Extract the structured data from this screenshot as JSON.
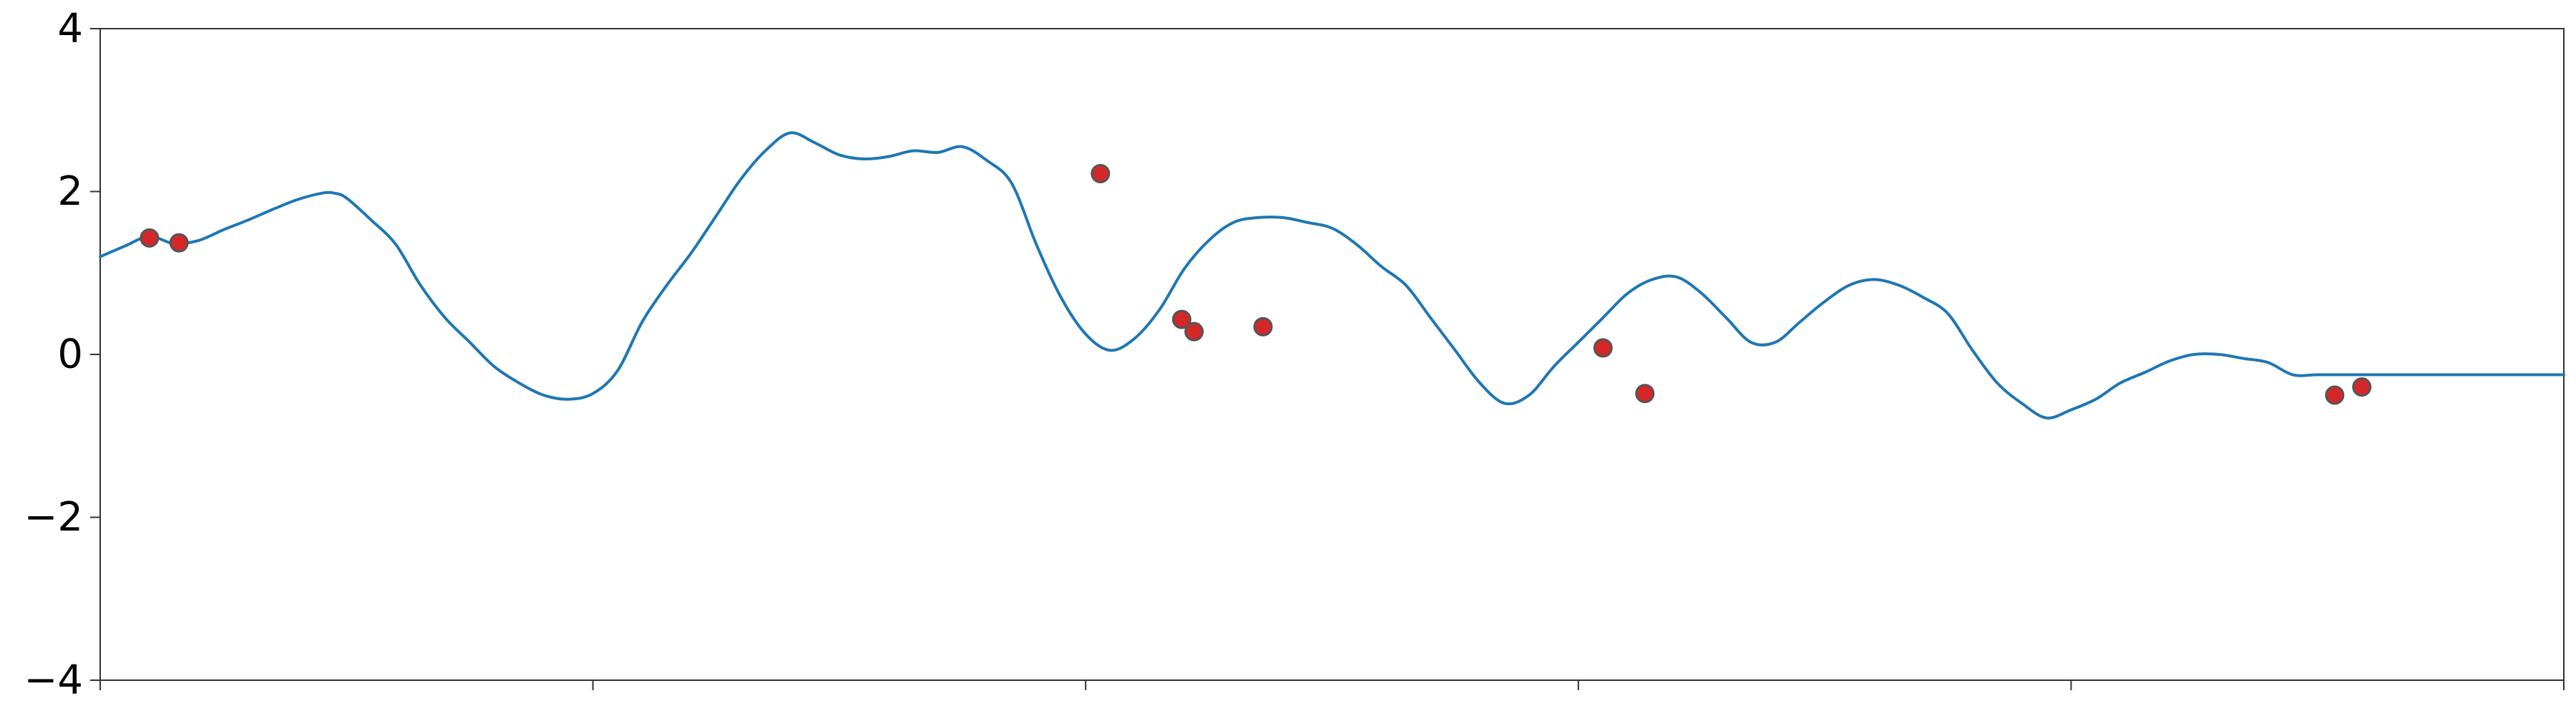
{
  "chart_data": {
    "type": "line",
    "title": "",
    "xlabel": "",
    "ylabel": "",
    "xlim": [
      0,
      1
    ],
    "ylim": [
      -4,
      4
    ],
    "x_ticks": [
      0,
      0.2,
      0.4,
      0.6,
      0.8,
      1.0
    ],
    "x_tick_labels_visible": false,
    "y_ticks": [
      4,
      2,
      0,
      -2,
      -4
    ],
    "y_tick_labels": [
      "4",
      "2",
      "0",
      "−2",
      "−4"
    ],
    "grid": false,
    "legend": "none",
    "line_color": "#1f77b4",
    "marker_fill": "#d62728",
    "marker_edge": "#555555",
    "series": [
      {
        "kind": "line",
        "x": [
          0.0,
          0.01,
          0.02,
          0.03,
          0.04,
          0.05,
          0.06,
          0.07,
          0.08,
          0.09,
          0.095,
          0.1,
          0.11,
          0.12,
          0.13,
          0.14,
          0.15,
          0.16,
          0.17,
          0.18,
          0.19,
          0.2,
          0.21,
          0.22,
          0.23,
          0.24,
          0.25,
          0.26,
          0.27,
          0.28,
          0.29,
          0.3,
          0.31,
          0.32,
          0.33,
          0.34,
          0.35,
          0.36,
          0.37,
          0.38,
          0.39,
          0.4,
          0.41,
          0.42,
          0.43,
          0.44,
          0.45,
          0.46,
          0.47,
          0.48,
          0.49,
          0.5,
          0.51,
          0.52,
          0.53,
          0.54,
          0.55,
          0.56,
          0.57,
          0.58,
          0.59,
          0.6,
          0.61,
          0.62,
          0.63,
          0.64,
          0.65,
          0.66,
          0.67,
          0.68,
          0.69,
          0.7,
          0.71,
          0.72,
          0.73,
          0.74,
          0.75,
          0.76,
          0.77,
          0.78,
          0.79,
          0.8,
          0.81,
          0.82,
          0.83,
          0.84,
          0.85,
          0.86,
          0.87,
          0.88,
          0.89,
          0.9,
          0.91,
          0.92,
          0.93,
          0.94,
          0.95,
          0.96,
          0.97,
          0.98,
          0.99,
          1.0
        ],
        "y": [
          1.2,
          1.33,
          1.45,
          1.36,
          1.4,
          1.53,
          1.65,
          1.78,
          1.9,
          1.98,
          1.98,
          1.92,
          1.65,
          1.35,
          0.85,
          0.45,
          0.15,
          -0.15,
          -0.35,
          -0.5,
          -0.55,
          -0.48,
          -0.2,
          0.4,
          0.85,
          1.25,
          1.7,
          2.15,
          2.5,
          2.72,
          2.6,
          2.45,
          2.4,
          2.43,
          2.5,
          2.48,
          2.55,
          2.38,
          2.1,
          1.35,
          0.7,
          0.25,
          0.05,
          0.2,
          0.55,
          1.05,
          1.4,
          1.62,
          1.68,
          1.68,
          1.62,
          1.55,
          1.35,
          1.08,
          0.85,
          0.45,
          0.05,
          -0.35,
          -0.6,
          -0.5,
          -0.15,
          0.15,
          0.45,
          0.75,
          0.92,
          0.95,
          0.75,
          0.45,
          0.15,
          0.15,
          0.4,
          0.65,
          0.85,
          0.92,
          0.85,
          0.7,
          0.5,
          0.05,
          -0.35,
          -0.6,
          -0.78,
          -0.68,
          -0.55,
          -0.35,
          -0.22,
          -0.08,
          0.0,
          0.0,
          -0.05,
          -0.1,
          -0.25,
          -0.25,
          -0.25,
          -0.25,
          -0.25,
          -0.25,
          -0.25,
          -0.25,
          -0.25,
          -0.25,
          -0.25,
          -0.25
        ]
      },
      {
        "kind": "scatter",
        "x": [
          0.02,
          0.032,
          0.406,
          0.439,
          0.444,
          0.472,
          0.61,
          0.627,
          0.907,
          0.918
        ],
        "y": [
          1.43,
          1.37,
          2.22,
          0.43,
          0.28,
          0.34,
          0.08,
          -0.48,
          -0.5,
          -0.4
        ]
      }
    ]
  }
}
